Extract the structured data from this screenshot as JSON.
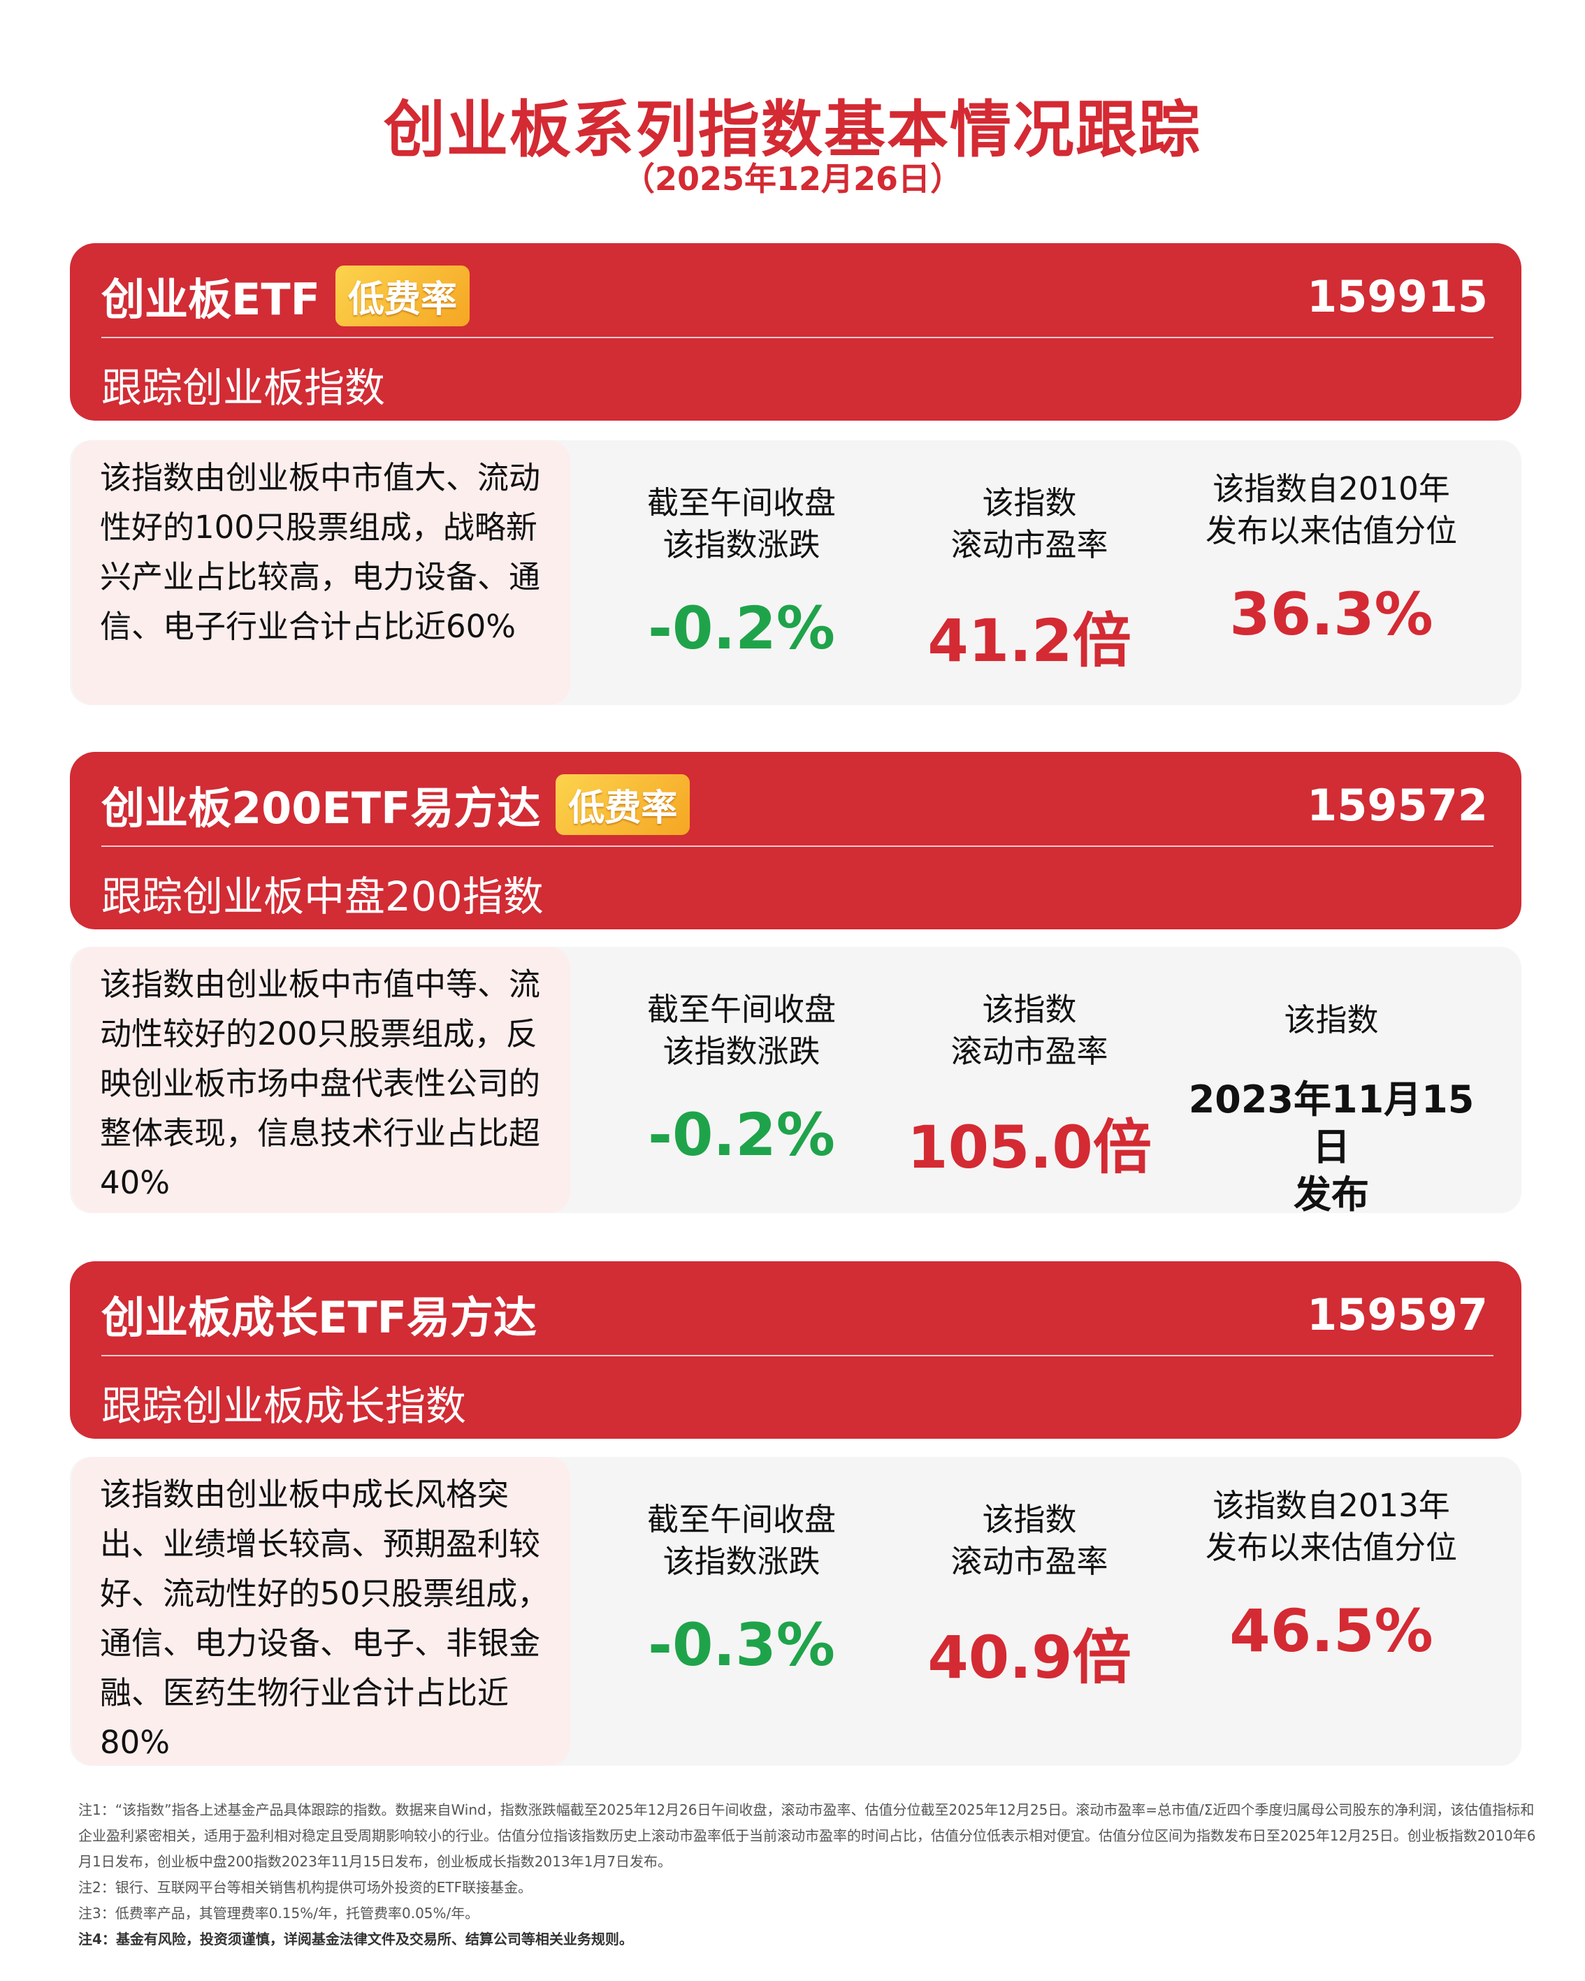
{
  "header": {
    "title": "创业板系列指数基本情况跟踪",
    "date": "（2025年12月26日）"
  },
  "colors": {
    "accent_red": "#d22c35",
    "up_red": "#d42a33",
    "down_green": "#1fa34a",
    "badge": "#f5a623"
  },
  "cards": [
    {
      "name": "创业板ETF",
      "badge": "低费率",
      "code": "159915",
      "track": "跟踪创业板指数",
      "desc": "该指数由创业板中市值大、流动性好的100只股票组成，战略新兴产业占比较高，电力设备、通信、电子行业合计占比近60%",
      "c1_label": "截至午间收盘\n该指数涨跌",
      "c1_value": "-0.2%",
      "c2_label": "该指数\n滚动市盈率",
      "c2_value": "41.2倍",
      "c3_label": "该指数自2010年\n发布以来估值分位",
      "c3_value": "36.3%"
    },
    {
      "name": "创业板200ETF易方达",
      "badge": "低费率",
      "code": "159572",
      "track": "跟踪创业板中盘200指数",
      "desc": "该指数由创业板中市值中等、流动性较好的200只股票组成，反映创业板市场中盘代表性公司的整体表现，信息技术行业占比超40%",
      "c1_label": "截至午间收盘\n该指数涨跌",
      "c1_value": "-0.2%",
      "c2_label": "该指数\n滚动市盈率",
      "c2_value": "105.0倍",
      "c3_label": "该指数",
      "c3_text": "2023年11月15日\n发布"
    },
    {
      "name": "创业板成长ETF易方达",
      "code": "159597",
      "track": "跟踪创业板成长指数",
      "desc": "该指数由创业板中成长风格突出、业绩增长较高、预期盈利较好、流动性好的50只股票组成，通信、电力设备、电子、非银金融、医药生物行业合计占比近80%",
      "c1_label": "截至午间收盘\n该指数涨跌",
      "c1_value": "-0.3%",
      "c2_label": "该指数\n滚动市盈率",
      "c2_value": "40.9倍",
      "c3_label": "该指数自2013年\n发布以来估值分位",
      "c3_value": "46.5%"
    }
  ],
  "notes": [
    "注1：“该指数”指各上述基金产品具体跟踪的指数。数据来自Wind，指数涨跌幅截至2025年12月26日午间收盘，滚动市盈率、估值分位截至2025年12月25日。滚动市盈率=总市值/Σ近四个季度归属母公司股东的净利润，该估值指标和企业盈利紧密相关，适用于盈利相对稳定且受周期影响较小的行业。估值分位指该指数历史上滚动市盈率低于当前滚动市盈率的时间占比，估值分位低表示相对便宜。估值分位区间为指数发布日至2025年12月25日。创业板指数2010年6月1日发布，创业板中盘200指数2023年11月15日发布，创业板成长指数2013年1月7日发布。",
    "注2：银行、互联网平台等相关销售机构提供可场外投资的ETF联接基金。",
    "注3：低费率产品，其管理费率0.15%/年，托管费率0.05%/年。",
    "注4：基金有风险，投资须谨慎，详阅基金法律文件及交易所、结算公司等相关业务规则。"
  ]
}
